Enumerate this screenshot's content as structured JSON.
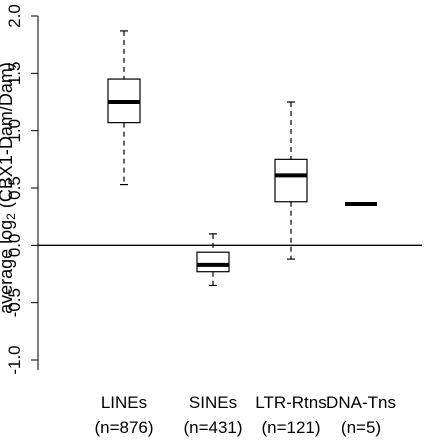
{
  "chart_data": {
    "type": "boxplot",
    "title": "",
    "ylabel": {
      "prefix": "average log",
      "subscript": "2",
      "suffix": " (CBX1-Dam/Dam)"
    },
    "ylim": [
      -1.0,
      2.0
    ],
    "yticks": [
      -1.0,
      -0.5,
      0.0,
      0.5,
      1.0,
      1.5,
      2.0
    ],
    "ytick_labels": [
      "-1.0",
      "-0.5",
      "0.0",
      "0.5",
      "1.0",
      "1.5",
      "2.0"
    ],
    "reference_line": 0.0,
    "grid": false,
    "categories": [
      {
        "name": "LINEs",
        "count_label": "(n=876)",
        "whisker_low": 0.53,
        "q1": 1.07,
        "median": 1.25,
        "q3": 1.45,
        "whisker_high": 1.87
      },
      {
        "name": "SINEs",
        "count_label": "(n=431)",
        "whisker_low": -0.35,
        "q1": -0.23,
        "median": -0.17,
        "q3": -0.06,
        "whisker_high": 0.1
      },
      {
        "name": "LTR-Rtns",
        "count_label": "(n=121)",
        "whisker_low": -0.12,
        "q1": 0.38,
        "median": 0.61,
        "q3": 0.75,
        "whisker_high": 1.25
      },
      {
        "name": "DNA-Tns",
        "count_label": "(n=5)",
        "whisker_low": 0.36,
        "q1": 0.36,
        "median": 0.36,
        "q3": 0.36,
        "whisker_high": 0.36
      }
    ]
  }
}
